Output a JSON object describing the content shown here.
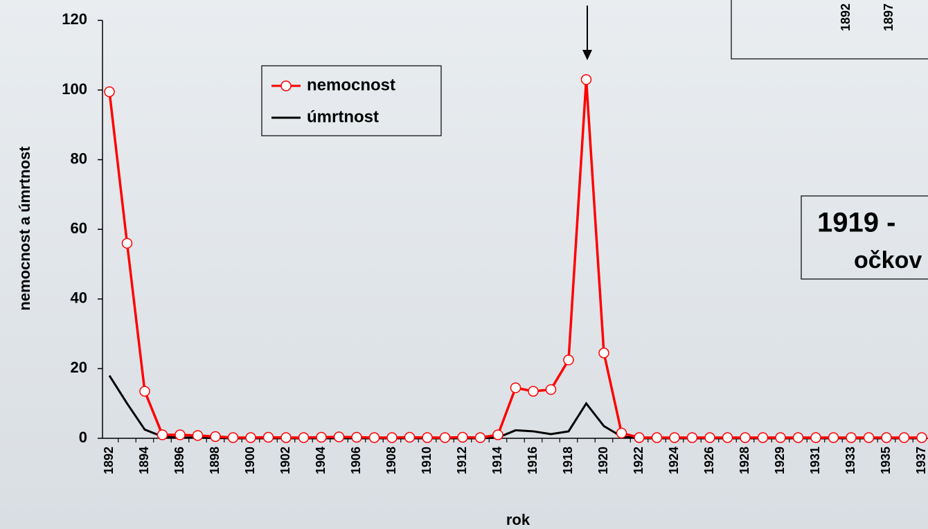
{
  "chart_data": {
    "type": "line",
    "y_label": "nemocnost a úmrtnost",
    "x_label": "rok",
    "categories": [
      "1892",
      null,
      "1894",
      null,
      "1896",
      null,
      "1898",
      null,
      "1900",
      null,
      "1902",
      null,
      "1904",
      null,
      "1906",
      null,
      "1908",
      null,
      "1910",
      null,
      "1912",
      null,
      "1914",
      null,
      "1916",
      null,
      "1918",
      null,
      "1920",
      null,
      "1922",
      null,
      "1924",
      null,
      "1926",
      null,
      "1928",
      null,
      "1929",
      null,
      "1931",
      null,
      "1933",
      null,
      "1935",
      null,
      "1937"
    ],
    "series": [
      {
        "name": "nemocnost",
        "color": "#ff0000",
        "marker": "circle",
        "values": [
          99.5,
          56,
          13.5,
          1,
          1,
          0.8,
          0.5,
          0.2,
          0.2,
          0.3,
          0.2,
          0.2,
          0.3,
          0.4,
          0.3,
          0.2,
          0.2,
          0.3,
          0.2,
          0.2,
          0.3,
          0.2,
          1,
          14.5,
          13.5,
          14,
          22.5,
          103,
          24.5,
          1.5,
          0.2,
          0.2,
          0.2,
          0.2,
          0.2,
          0.2,
          0.2,
          0.2,
          0.2,
          0.2,
          0.2,
          0.2,
          0.2,
          0.2,
          0.2,
          0.2,
          0.2
        ]
      },
      {
        "name": "úmrtnost",
        "color": "#000000",
        "values": [
          18,
          10,
          2.5,
          0.5,
          0.2,
          0.2,
          0.1,
          0,
          0,
          0,
          0,
          0,
          0,
          0,
          0,
          0,
          0,
          0,
          0,
          0,
          0,
          0,
          0.2,
          2.3,
          2,
          1.2,
          2,
          10,
          3.5,
          0.5,
          0,
          0,
          0,
          0,
          0,
          0,
          0,
          0,
          0,
          0,
          0,
          0,
          0,
          0,
          0,
          0,
          0
        ]
      }
    ],
    "ylim": [
      0,
      120
    ],
    "yticks": [
      0,
      20,
      40,
      60,
      80,
      100,
      120
    ],
    "annotations": [
      "1919 -",
      "očkov"
    ],
    "inset_labels": [
      "1892",
      "1897"
    ]
  }
}
